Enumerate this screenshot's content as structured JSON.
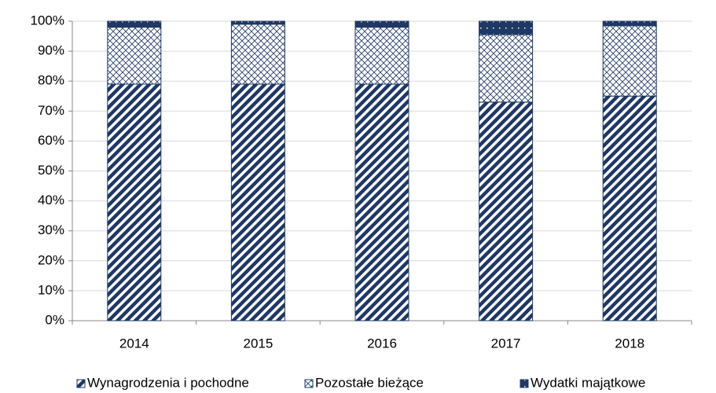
{
  "chart_data": {
    "type": "stacked_bar",
    "categories": [
      "2014",
      "2015",
      "2016",
      "2017",
      "2018"
    ],
    "series": [
      {
        "name": "Wynagrodzenia i pochodne",
        "color": "#1f3864",
        "pattern": "diagonal",
        "values": [
          79,
          79,
          79,
          73,
          75
        ]
      },
      {
        "name": "Pozostałe bieżące",
        "color": "#1f3864",
        "pattern": "crosshatch",
        "values": [
          19,
          20,
          19,
          22.5,
          23.5
        ]
      },
      {
        "name": "Wydatki majątkowe",
        "color": "#1f3864",
        "pattern": "dotted",
        "values": [
          2,
          1,
          2,
          4.5,
          1.5
        ]
      }
    ],
    "ylim": [
      0,
      100
    ],
    "yticks": [
      {
        "value": 0,
        "label": "0%"
      },
      {
        "value": 10,
        "label": "10%"
      },
      {
        "value": 20,
        "label": "20%"
      },
      {
        "value": 30,
        "label": "30%"
      },
      {
        "value": 40,
        "label": "40%"
      },
      {
        "value": 50,
        "label": "50%"
      },
      {
        "value": 60,
        "label": "60%"
      },
      {
        "value": 70,
        "label": "70%"
      },
      {
        "value": 80,
        "label": "80%"
      },
      {
        "value": 90,
        "label": "90%"
      },
      {
        "value": 100,
        "label": "100%"
      }
    ],
    "grid": true,
    "legend": "bottom"
  }
}
